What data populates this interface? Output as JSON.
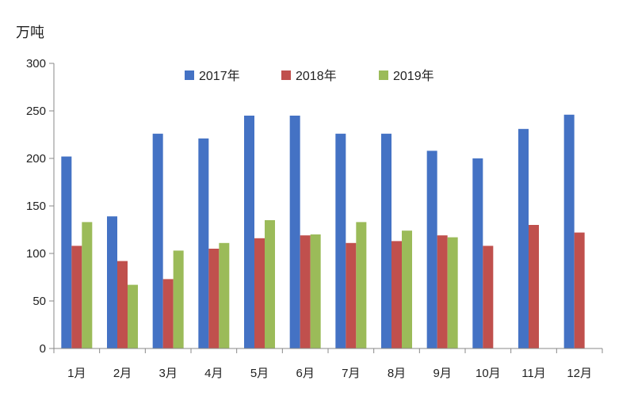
{
  "chart_data": {
    "type": "bar",
    "title": "",
    "xlabel": "",
    "ylabel": "万吨",
    "ylim": [
      0,
      300
    ],
    "yticks": [
      0,
      50,
      100,
      150,
      200,
      250,
      300
    ],
    "grid": false,
    "legend_position": "top",
    "categories": [
      "1月",
      "2月",
      "3月",
      "4月",
      "5月",
      "6月",
      "7月",
      "8月",
      "9月",
      "10月",
      "11月",
      "12月"
    ],
    "series": [
      {
        "name": "2017年",
        "color": "#4472C4",
        "values": [
          202,
          139,
          226,
          221,
          245,
          245,
          226,
          226,
          208,
          200,
          231,
          246
        ]
      },
      {
        "name": "2018年",
        "color": "#C0504D",
        "values": [
          108,
          92,
          73,
          105,
          116,
          119,
          111,
          113,
          119,
          108,
          130,
          122
        ]
      },
      {
        "name": "2019年",
        "color": "#9BBB59",
        "values": [
          133,
          67,
          103,
          111,
          135,
          120,
          133,
          124,
          117,
          null,
          null,
          null
        ]
      }
    ]
  }
}
